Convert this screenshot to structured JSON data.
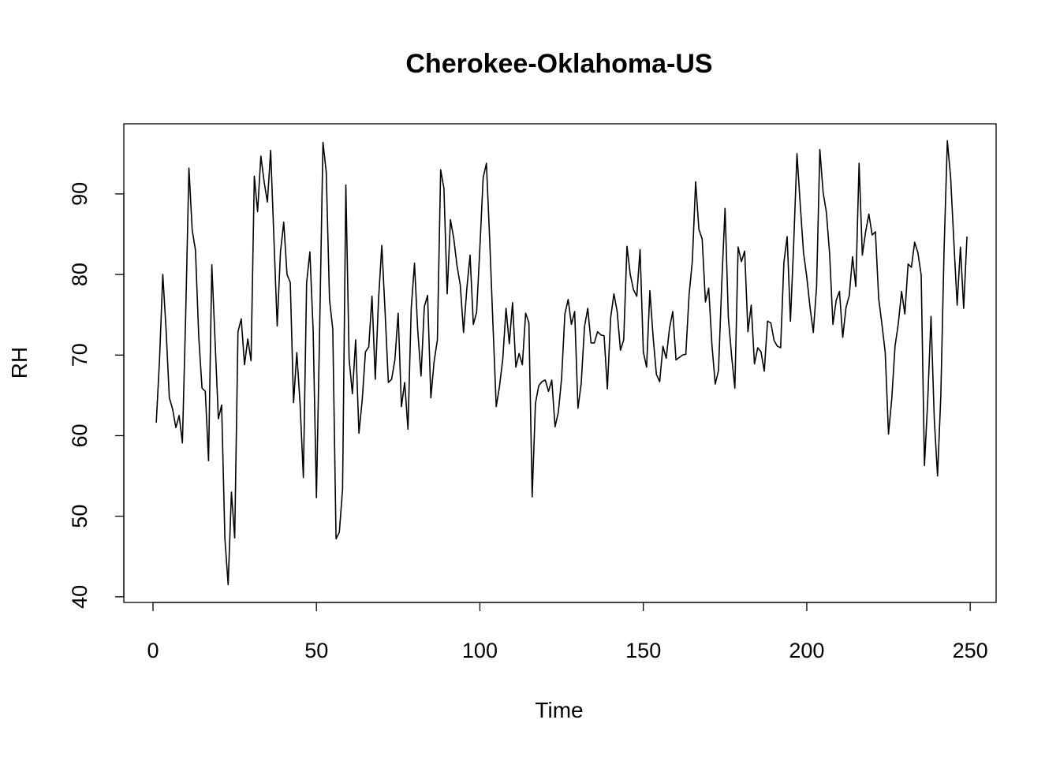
{
  "chart_data": {
    "type": "line",
    "title": "Cherokee-Oklahoma-US",
    "xlabel": "Time",
    "ylabel": "RH",
    "xlim": [
      -8.92,
      257.92
    ],
    "ylim": [
      39.3,
      98.7
    ],
    "xticks": [
      0,
      50,
      100,
      150,
      200,
      250
    ],
    "yticks": [
      40,
      50,
      60,
      70,
      80,
      90
    ],
    "grid": false,
    "legend": "none",
    "line_color": "#000000",
    "series": [
      {
        "x_start": 1,
        "x_step": 1,
        "values": [
          61.6,
          69.4,
          80.0,
          73.2,
          64.7,
          63.3,
          61.0,
          62.5,
          59.1,
          74.9,
          93.2,
          85.5,
          83.0,
          72.3,
          65.9,
          65.5,
          56.9,
          81.2,
          71.7,
          62.1,
          63.8,
          47.2,
          41.5,
          53.0,
          47.3,
          72.9,
          74.5,
          68.8,
          72.0,
          69.3,
          92.2,
          87.8,
          94.7,
          91.5,
          89.0,
          95.4,
          84.4,
          73.6,
          82.8,
          86.5,
          80.0,
          79.0,
          64.1,
          70.3,
          63.9,
          54.8,
          79.0,
          82.8,
          73.0,
          52.3,
          73.6,
          96.4,
          92.7,
          76.9,
          73.2,
          47.2,
          48.0,
          53.4,
          91.1,
          69.5,
          65.2,
          71.9,
          60.3,
          64.4,
          70.4,
          71.0,
          77.3,
          67.0,
          76.9,
          83.6,
          75.4,
          66.6,
          67.0,
          69.4,
          75.2,
          63.6,
          66.6,
          60.8,
          75.8,
          81.4,
          73.0,
          67.4,
          76.0,
          77.4,
          64.7,
          69.2,
          71.9,
          93.0,
          90.7,
          77.6,
          86.8,
          84.5,
          81.1,
          78.7,
          72.8,
          78.2,
          82.4,
          73.8,
          75.3,
          83.3,
          92.0,
          93.8,
          84.3,
          73.8,
          63.6,
          66.1,
          69.5,
          75.8,
          71.4,
          76.5,
          68.5,
          70.2,
          68.8,
          75.2,
          74.0,
          52.4,
          64.0,
          66.2,
          66.7,
          66.9,
          65.5,
          66.9,
          61.1,
          62.9,
          67.1,
          75.1,
          76.9,
          73.8,
          75.4,
          63.4,
          66.5,
          73.5,
          75.8,
          71.5,
          71.5,
          72.9,
          72.5,
          72.4,
          65.8,
          74.6,
          77.6,
          75.4,
          70.6,
          71.9,
          83.5,
          80.0,
          78.1,
          77.3,
          83.1,
          70.4,
          68.5,
          78.0,
          72.2,
          67.6,
          66.7,
          71.1,
          69.6,
          73.3,
          75.4,
          69.4,
          69.7,
          70.0,
          70.1,
          77.5,
          81.7,
          91.5,
          85.6,
          84.4,
          76.6,
          78.3,
          71.2,
          66.4,
          68.1,
          79.0,
          88.2,
          74.7,
          69.9,
          65.9,
          83.4,
          81.6,
          82.9,
          72.9,
          76.2,
          68.9,
          70.9,
          70.4,
          68.0,
          74.2,
          74.0,
          71.8,
          71.1,
          70.9,
          81.5,
          84.7,
          74.2,
          83.8,
          95.0,
          88.7,
          82.7,
          79.7,
          75.9,
          72.8,
          78.5,
          95.5,
          90.2,
          87.7,
          82.5,
          73.8,
          76.8,
          77.9,
          72.2,
          75.9,
          77.4,
          82.2,
          78.5,
          93.8,
          82.4,
          85.3,
          87.5,
          84.9,
          85.3,
          77.0,
          73.8,
          70.3,
          60.2,
          64.6,
          71.1,
          73.9,
          77.9,
          75.1,
          81.3,
          80.9,
          84.0,
          82.7,
          79.9,
          56.3,
          64.4,
          74.8,
          62.1,
          55.0,
          64.9,
          83.0,
          96.6,
          92.1,
          84.0,
          76.2,
          83.4,
          75.8,
          84.7
        ]
      }
    ]
  }
}
